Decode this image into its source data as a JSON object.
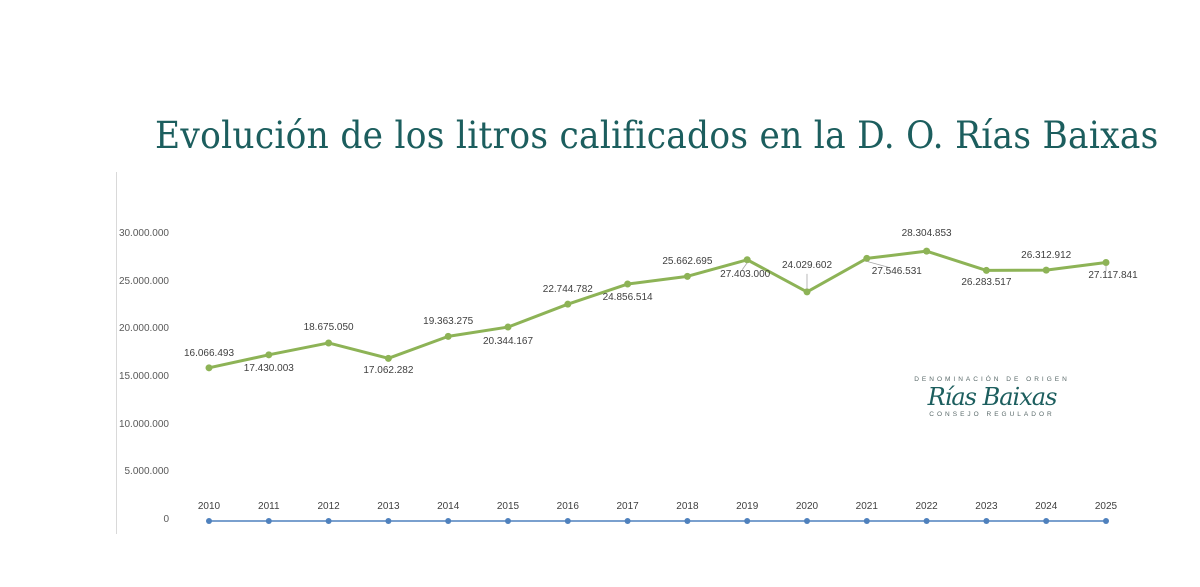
{
  "title": "Evolución de los litros calificados en la D. O. Rías Baixas",
  "logo": {
    "top_text": "DENOMINACIÓN DE ORIGEN",
    "name": "Rías Baixas",
    "bottom_text": "CONSEJO REGULADOR"
  },
  "y_ticks": [
    "30.000.000",
    "25.000.000",
    "20.000.000",
    "15.000.000",
    "10.000.000",
    "5.000.000",
    "0"
  ],
  "x_ticks": [
    "2010",
    "2011",
    "2012",
    "2013",
    "2014",
    "2015",
    "2016",
    "2017",
    "2018",
    "2019",
    "2020",
    "2021",
    "2022",
    "2023",
    "2024",
    "2025"
  ],
  "data_labels": [
    "16.066.493",
    "17.430.003",
    "18.675.050",
    "17.062.282",
    "19.363.275",
    "20.344.167",
    "22.744.782",
    "24.856.514",
    "25.662.695",
    "27.403.000",
    "24.029.602",
    "27.546.531",
    "28.304.853",
    "26.283.517",
    "26.312.912",
    "27.117.841"
  ],
  "colors": {
    "series": "#8db356",
    "baseline": "#4f81bd",
    "title": "#1c5e5e"
  },
  "chart_data": {
    "type": "line",
    "title": "Evolución de los litros calificados en la D. O. Rías Baixas",
    "xlabel": "",
    "ylabel": "",
    "ylim": [
      0,
      30000000
    ],
    "grid": false,
    "legend": "none",
    "categories": [
      "2010",
      "2011",
      "2012",
      "2013",
      "2014",
      "2015",
      "2016",
      "2017",
      "2018",
      "2019",
      "2020",
      "2021",
      "2022",
      "2023",
      "2024",
      "2025"
    ],
    "series": [
      {
        "name": "Litros calificados",
        "values": [
          16066493,
          17430003,
          18675050,
          17062282,
          19363275,
          20344167,
          22744782,
          24856514,
          25662695,
          27403000,
          24029602,
          27546531,
          28304853,
          26283517,
          26312912,
          27117841
        ]
      }
    ]
  }
}
